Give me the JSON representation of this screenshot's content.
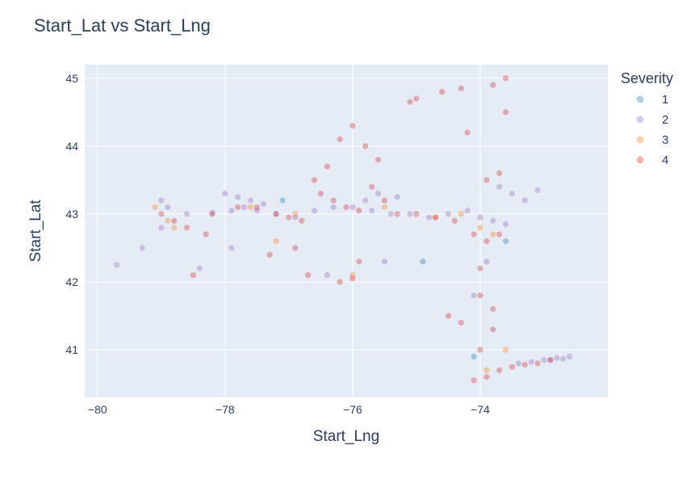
{
  "chart_data": {
    "type": "scatter",
    "title": "Start_Lat vs Start_Lng",
    "xlabel": "Start_Lng",
    "ylabel": "Start_Lat",
    "xlim": [
      -80.2,
      -72.0
    ],
    "ylim": [
      40.3,
      45.2
    ],
    "xticks": [
      -80,
      -78,
      -76,
      -74
    ],
    "yticks": [
      41,
      42,
      43,
      44,
      45
    ],
    "grid": true,
    "legend": {
      "title": "Severity",
      "placement": "top-right"
    },
    "series": [
      {
        "name": "1",
        "color": "#1f77b4",
        "x": [
          -77.1,
          -74.9,
          -73.6,
          -74.1
        ],
        "y": [
          43.2,
          42.3,
          42.6,
          40.9
        ]
      },
      {
        "name": "2",
        "color": "#9467bd",
        "x": [
          -79.7,
          -79.3,
          -79.0,
          -78.6,
          -78.2,
          -77.9,
          -77.7,
          -77.5,
          -77.2,
          -76.9,
          -76.6,
          -76.3,
          -76.0,
          -75.7,
          -75.4,
          -75.1,
          -74.8,
          -74.5,
          -74.2,
          -74.0,
          -73.8,
          -73.6,
          -73.4,
          -73.2,
          -73.0,
          -72.8,
          -72.6,
          -79.0,
          -78.9,
          -78.0,
          -77.8,
          -77.6,
          -77.4,
          -75.6,
          -75.8,
          -75.3,
          -73.7,
          -73.5,
          -73.9,
          -74.1,
          -73.3,
          -73.1,
          -72.9,
          -72.7,
          -75.5,
          -76.4,
          -77.9,
          -78.4
        ],
        "y": [
          42.25,
          42.5,
          42.8,
          43.0,
          43.02,
          43.05,
          43.1,
          43.05,
          43.0,
          42.95,
          43.05,
          43.1,
          43.1,
          43.05,
          43.0,
          43.0,
          42.95,
          43.0,
          43.05,
          42.95,
          42.9,
          42.85,
          40.8,
          40.82,
          40.85,
          40.88,
          40.9,
          43.2,
          43.1,
          43.3,
          43.25,
          43.2,
          43.15,
          43.3,
          43.2,
          43.25,
          43.4,
          43.3,
          42.3,
          41.8,
          43.2,
          43.35,
          40.85,
          40.87,
          42.3,
          42.1,
          42.5,
          42.2
        ]
      },
      {
        "name": "3",
        "color": "#ff7f0e",
        "x": [
          -79.1,
          -78.9,
          -78.8,
          -77.6,
          -76.9,
          -75.5,
          -74.7,
          -74.3,
          -74.0,
          -73.8,
          -73.6,
          -73.9,
          -76.0,
          -77.2
        ],
        "y": [
          43.1,
          42.9,
          42.8,
          43.1,
          43.0,
          43.1,
          42.95,
          43.0,
          42.8,
          42.7,
          41.0,
          40.7,
          42.1,
          42.6
        ]
      },
      {
        "name": "4",
        "color": "#d62728",
        "x": [
          -79.0,
          -78.8,
          -78.6,
          -78.2,
          -77.8,
          -77.5,
          -77.2,
          -77.0,
          -76.8,
          -76.5,
          -76.3,
          -76.1,
          -75.9,
          -75.7,
          -75.5,
          -75.3,
          -75.0,
          -74.7,
          -74.4,
          -74.1,
          -73.9,
          -73.7,
          -73.5,
          -73.3,
          -73.1,
          -72.9,
          -76.0,
          -75.8,
          -75.6,
          -76.2,
          -76.4,
          -76.6,
          -75.1,
          -75.0,
          -74.6,
          -74.3,
          -74.2,
          -73.8,
          -73.6,
          -73.6,
          -73.7,
          -73.9,
          -74.0,
          -74.0,
          -73.8,
          -73.8,
          -74.0,
          -73.7,
          -73.9,
          -74.1,
          -74.3,
          -74.5,
          -76.7,
          -76.9,
          -77.3,
          -78.3,
          -78.5,
          -76.2,
          -76.0,
          -75.9
        ],
        "y": [
          43.0,
          42.9,
          42.8,
          43.0,
          43.1,
          43.1,
          43.0,
          42.95,
          42.9,
          43.3,
          43.2,
          43.1,
          43.05,
          43.4,
          43.2,
          43.0,
          43.0,
          42.95,
          42.9,
          42.7,
          42.6,
          42.7,
          40.75,
          40.78,
          40.8,
          40.85,
          44.3,
          44.0,
          43.8,
          44.1,
          43.7,
          43.5,
          44.65,
          44.7,
          44.8,
          44.85,
          44.2,
          44.9,
          45.0,
          44.5,
          43.6,
          43.5,
          42.2,
          41.8,
          41.6,
          41.3,
          41.0,
          40.7,
          40.6,
          40.55,
          41.4,
          41.5,
          42.1,
          42.5,
          42.4,
          42.7,
          42.1,
          42.0,
          42.05,
          42.3
        ]
      }
    ]
  }
}
